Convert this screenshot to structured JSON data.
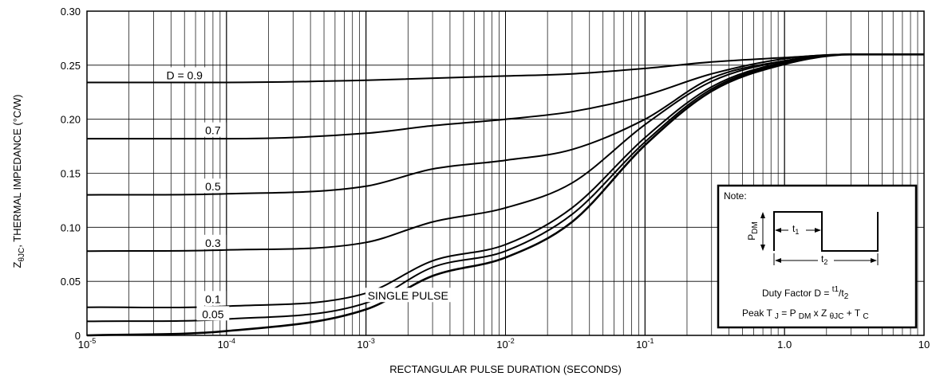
{
  "chart_data": {
    "type": "line",
    "title": "",
    "xlabel": "RECTANGULAR PULSE DURATION (SECONDS)",
    "ylabel": "Z",
    "ylabel_sub": "θJC",
    "ylabel_rest": ", THERMAL IMPEDANCE (°C/W)",
    "x_scale": "log",
    "xlim": [
      1e-05,
      10
    ],
    "ylim": [
      0,
      0.3
    ],
    "grid": true,
    "x_ticks": [
      {
        "value": 1e-05,
        "base": "10",
        "exp": "-5"
      },
      {
        "value": 0.0001,
        "base": "10",
        "exp": "-4"
      },
      {
        "value": 0.001,
        "base": "10",
        "exp": "-3"
      },
      {
        "value": 0.01,
        "base": "10",
        "exp": "-2"
      },
      {
        "value": 0.1,
        "base": "10",
        "exp": "-1"
      },
      {
        "value": 1,
        "base": "1.0",
        "exp": ""
      },
      {
        "value": 10,
        "base": "10",
        "exp": ""
      }
    ],
    "y_ticks": [
      {
        "value": 0,
        "label": "0"
      },
      {
        "value": 0.05,
        "label": "0.05"
      },
      {
        "value": 0.1,
        "label": "0.10"
      },
      {
        "value": 0.15,
        "label": "0.15"
      },
      {
        "value": 0.2,
        "label": "0.20"
      },
      {
        "value": 0.25,
        "label": "0.25"
      },
      {
        "value": 0.3,
        "label": "0.30"
      }
    ],
    "series": [
      {
        "name": "D = 0.9",
        "label_at": [
          5e-05,
          0.237
        ],
        "x": [
          1e-05,
          0.0001,
          0.001,
          0.01,
          0.03,
          0.1,
          0.3,
          1,
          3,
          10
        ],
        "y": [
          0.234,
          0.234,
          0.236,
          0.24,
          0.242,
          0.247,
          0.253,
          0.257,
          0.26,
          0.26
        ]
      },
      {
        "name": "0.7",
        "label_at": [
          8e-05,
          0.186
        ],
        "x": [
          1e-05,
          0.0001,
          0.001,
          0.003,
          0.01,
          0.03,
          0.1,
          0.3,
          1,
          3,
          10
        ],
        "y": [
          0.182,
          0.182,
          0.187,
          0.194,
          0.2,
          0.207,
          0.222,
          0.242,
          0.256,
          0.26,
          0.26
        ]
      },
      {
        "name": "0.5",
        "label_at": [
          8e-05,
          0.134
        ],
        "x": [
          1e-05,
          0.0001,
          0.001,
          0.003,
          0.01,
          0.03,
          0.1,
          0.3,
          1,
          3,
          10
        ],
        "y": [
          0.13,
          0.131,
          0.138,
          0.154,
          0.162,
          0.172,
          0.2,
          0.238,
          0.254,
          0.26,
          0.26
        ]
      },
      {
        "name": "0.3",
        "label_at": [
          8e-05,
          0.082
        ],
        "x": [
          1e-05,
          0.0001,
          0.001,
          0.003,
          0.01,
          0.03,
          0.1,
          0.3,
          1,
          3,
          10
        ],
        "y": [
          0.078,
          0.079,
          0.086,
          0.105,
          0.118,
          0.141,
          0.195,
          0.235,
          0.254,
          0.26,
          0.26
        ]
      },
      {
        "name": "0.1",
        "label_at": [
          8e-05,
          0.03
        ],
        "x": [
          1e-05,
          0.0001,
          0.001,
          0.003,
          0.01,
          0.03,
          0.1,
          0.3,
          1,
          3,
          10
        ],
        "y": [
          0.026,
          0.027,
          0.039,
          0.069,
          0.084,
          0.118,
          0.183,
          0.23,
          0.253,
          0.26,
          0.26
        ]
      },
      {
        "name": "0.05",
        "label_at": [
          8e-05,
          0.016
        ],
        "x": [
          1e-05,
          0.0001,
          0.001,
          0.003,
          0.01,
          0.03,
          0.1,
          0.3,
          1,
          3,
          10
        ],
        "y": [
          0.013,
          0.015,
          0.03,
          0.063,
          0.078,
          0.112,
          0.179,
          0.228,
          0.252,
          0.26,
          0.26
        ]
      },
      {
        "name": "SINGLE PULSE",
        "label_at": [
          0.002,
          0.033
        ],
        "x": [
          1e-05,
          0.0001,
          0.001,
          0.003,
          0.01,
          0.03,
          0.1,
          0.3,
          1,
          3,
          10
        ],
        "y": [
          0.0,
          0.004,
          0.024,
          0.055,
          0.072,
          0.105,
          0.176,
          0.226,
          0.251,
          0.26,
          0.26
        ]
      }
    ],
    "note": {
      "title": "Note:",
      "pdm_base": "P",
      "pdm_sub": "DM",
      "t1_base": "t",
      "t1_sub": "1",
      "t2_base": "t",
      "t2_sub": "2",
      "duty_line": {
        "text": "Duty Factor D = ",
        "t1": "1",
        "t2": "2"
      },
      "peak_line": {
        "a": "Peak T ",
        "j": "J",
        "b": " = P ",
        "dm": "DM",
        "c": " x Z ",
        "thjc": "θJC",
        "d": " + T ",
        "tc": "C"
      }
    },
    "colors": {
      "line": "#000000",
      "grid": "#000000",
      "background": "#ffffff"
    }
  }
}
